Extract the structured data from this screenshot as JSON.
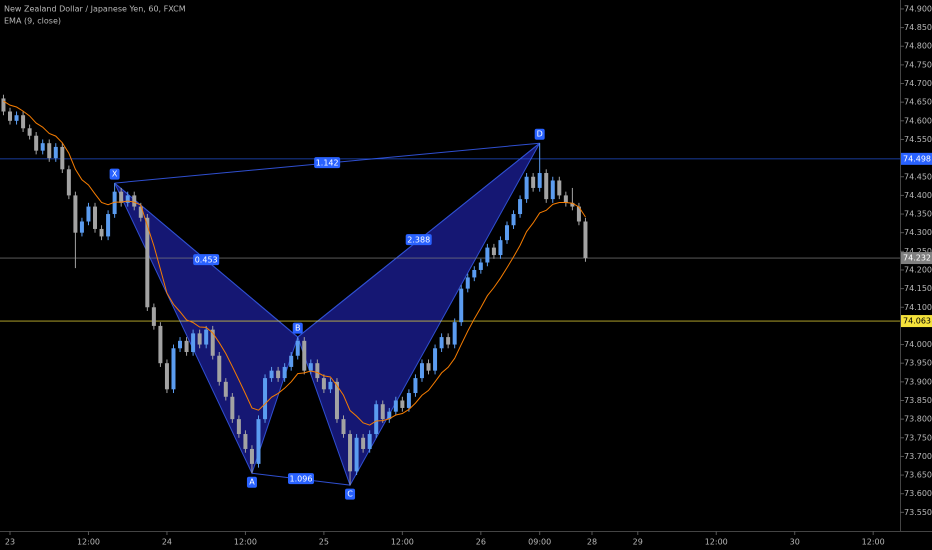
{
  "chart_data": {
    "type": "candlestick",
    "title": "New Zealand Dollar / Japanese Yen, 60, FXCM",
    "up_color": "#5b9cf0",
    "down_color": "#a3a3a3",
    "x": [
      -1,
      0,
      1,
      2,
      3,
      4,
      5,
      6,
      7,
      8,
      9,
      10,
      11,
      12,
      13,
      14,
      15,
      16,
      17,
      18,
      19,
      20,
      21,
      22,
      23,
      24,
      25,
      26,
      27,
      28,
      29,
      30,
      31,
      32,
      33,
      34,
      35,
      36,
      37,
      38,
      39,
      40,
      41,
      42,
      43,
      44,
      45,
      46,
      47,
      48,
      49,
      50,
      51,
      52,
      53,
      54,
      55,
      56,
      57,
      58,
      59,
      60,
      61,
      62,
      63,
      64,
      65,
      66,
      67,
      68,
      69,
      70,
      71,
      72,
      73,
      74,
      75,
      76,
      77,
      78,
      79,
      80,
      81,
      82,
      83,
      84,
      85,
      86,
      87,
      88
    ],
    "open": [
      74.66,
      74.625,
      74.6,
      74.615,
      74.58,
      74.56,
      74.52,
      74.54,
      74.5,
      74.53,
      74.47,
      74.4,
      74.3,
      74.33,
      74.37,
      74.31,
      74.29,
      74.35,
      74.41,
      74.38,
      74.4,
      74.37,
      74.34,
      74.1,
      74.05,
      73.95,
      73.88,
      73.99,
      74.01,
      73.98,
      74.03,
      74.0,
      74.04,
      73.97,
      73.9,
      73.86,
      73.8,
      73.76,
      73.72,
      73.68,
      73.8,
      73.91,
      73.93,
      73.91,
      73.94,
      73.97,
      74.01,
      73.93,
      73.95,
      73.91,
      73.88,
      73.9,
      73.8,
      73.76,
      73.66,
      73.75,
      73.72,
      73.76,
      73.84,
      73.8,
      73.82,
      73.85,
      73.83,
      73.87,
      73.91,
      73.95,
      73.93,
      73.99,
      74.02,
      74.0,
      74.06,
      74.15,
      74.18,
      74.2,
      74.22,
      74.26,
      74.24,
      74.28,
      74.32,
      74.35,
      74.39,
      74.45,
      74.42,
      74.46,
      74.39,
      74.44,
      74.4,
      74.38,
      74.37,
      74.33
    ],
    "high": [
      74.67,
      74.635,
      74.625,
      74.625,
      74.59,
      74.57,
      74.55,
      74.55,
      74.54,
      74.54,
      74.48,
      74.41,
      74.34,
      74.38,
      74.38,
      74.32,
      74.36,
      74.433,
      74.42,
      74.41,
      74.41,
      74.38,
      74.35,
      74.11,
      74.06,
      73.96,
      74.0,
      74.02,
      74.02,
      74.04,
      74.04,
      74.05,
      74.05,
      73.98,
      73.91,
      73.87,
      73.81,
      73.77,
      73.73,
      73.81,
      73.92,
      73.94,
      73.94,
      73.95,
      73.98,
      74.02,
      74.02,
      73.96,
      73.96,
      73.92,
      73.91,
      73.91,
      73.81,
      73.77,
      73.76,
      73.76,
      73.77,
      73.85,
      73.85,
      73.83,
      73.86,
      73.86,
      73.88,
      73.92,
      73.96,
      73.96,
      74.0,
      74.03,
      74.03,
      74.07,
      74.16,
      74.19,
      74.21,
      74.23,
      74.27,
      74.27,
      74.29,
      74.33,
      74.36,
      74.4,
      74.46,
      74.46,
      74.54,
      74.47,
      74.45,
      74.45,
      74.41,
      74.42,
      74.38,
      74.34
    ],
    "low": [
      74.615,
      74.59,
      74.59,
      74.57,
      74.55,
      74.51,
      74.51,
      74.49,
      74.49,
      74.46,
      74.39,
      74.205,
      74.29,
      74.32,
      74.3,
      74.28,
      74.28,
      74.34,
      74.37,
      74.37,
      74.36,
      74.33,
      74.09,
      74.04,
      73.94,
      73.87,
      73.87,
      73.98,
      73.97,
      73.97,
      73.99,
      73.99,
      73.96,
      73.89,
      73.85,
      73.79,
      73.75,
      73.71,
      73.655,
      73.67,
      73.79,
      73.9,
      73.9,
      73.9,
      73.93,
      73.96,
      73.92,
      73.92,
      73.9,
      73.87,
      73.87,
      73.79,
      73.75,
      73.623,
      73.65,
      73.71,
      73.71,
      73.75,
      73.79,
      73.79,
      73.81,
      73.82,
      73.82,
      73.86,
      73.9,
      73.92,
      73.92,
      73.98,
      73.99,
      73.99,
      74.05,
      74.14,
      74.17,
      74.19,
      74.21,
      74.23,
      74.23,
      74.27,
      74.31,
      74.34,
      74.38,
      74.41,
      74.41,
      74.38,
      74.38,
      74.39,
      74.37,
      74.36,
      74.32,
      74.222
    ],
    "close": [
      74.625,
      74.6,
      74.615,
      74.58,
      74.56,
      74.52,
      74.54,
      74.5,
      74.53,
      74.47,
      74.4,
      74.3,
      74.33,
      74.37,
      74.31,
      74.29,
      74.35,
      74.41,
      74.38,
      74.4,
      74.37,
      74.34,
      74.1,
      74.05,
      73.95,
      73.88,
      73.99,
      74.01,
      73.98,
      74.03,
      74.0,
      74.04,
      73.97,
      73.9,
      73.86,
      73.8,
      73.76,
      73.72,
      73.68,
      73.8,
      73.91,
      73.93,
      73.91,
      73.94,
      73.97,
      74.01,
      73.93,
      73.95,
      73.91,
      73.88,
      73.9,
      73.8,
      73.76,
      73.66,
      73.75,
      73.72,
      73.76,
      73.84,
      73.8,
      73.82,
      73.85,
      73.83,
      73.87,
      73.91,
      73.95,
      73.93,
      73.99,
      74.02,
      74.0,
      74.06,
      74.15,
      74.18,
      74.2,
      74.22,
      74.26,
      74.24,
      74.28,
      74.32,
      74.35,
      74.39,
      74.45,
      74.42,
      74.46,
      74.39,
      74.44,
      74.4,
      74.38,
      74.37,
      74.33,
      74.232
    ],
    "indicator": {
      "name": "EMA (9, close)",
      "color": "#f57c00",
      "values": [
        74.653,
        74.642,
        74.637,
        74.626,
        74.613,
        74.594,
        74.583,
        74.566,
        74.559,
        74.541,
        74.513,
        74.47,
        74.442,
        74.428,
        74.404,
        74.381,
        74.375,
        74.382,
        74.382,
        74.385,
        74.382,
        74.374,
        74.319,
        74.265,
        74.202,
        74.138,
        74.108,
        74.088,
        74.066,
        74.059,
        74.047,
        74.046,
        74.031,
        74.005,
        73.976,
        73.941,
        73.905,
        73.868,
        73.83,
        73.824,
        73.841,
        73.859,
        73.869,
        73.883,
        73.9,
        73.922,
        73.924,
        73.929,
        73.925,
        73.916,
        73.913,
        73.89,
        73.864,
        73.823,
        73.808,
        73.79,
        73.784,
        73.795,
        73.796,
        73.801,
        73.811,
        73.815,
        73.826,
        73.843,
        73.864,
        73.877,
        73.9,
        73.924,
        73.939,
        73.963,
        74.0,
        74.036,
        74.069,
        74.099,
        74.131,
        74.153,
        74.178,
        74.206,
        74.235,
        74.266,
        74.303,
        74.326,
        74.353,
        74.36,
        74.376,
        74.381,
        74.381,
        74.379,
        74.369,
        74.342
      ]
    },
    "pattern": {
      "color": "#2f4fd0",
      "fill": "#1c1f9a",
      "points": [
        {
          "label": "X",
          "x": 16,
          "y": 74.433
        },
        {
          "label": "A",
          "x": 37,
          "y": 73.655
        },
        {
          "label": "B",
          "x": 44,
          "y": 74.02
        },
        {
          "label": "C",
          "x": 52,
          "y": 73.623
        },
        {
          "label": "D",
          "x": 81,
          "y": 74.54
        }
      ],
      "ratios": [
        "0.453",
        "1.142",
        "2.388",
        "1.096"
      ]
    },
    "price_lines": [
      {
        "value": 74.498,
        "color": "#2962ff"
      },
      {
        "value": 74.232,
        "color": "#808080"
      },
      {
        "value": 74.063,
        "color": "#f5e23b"
      }
    ],
    "xlim": [
      -1.53,
      136.1
    ],
    "ylim": [
      73.5,
      74.924
    ],
    "xticks": [
      {
        "value": 0,
        "label": "23"
      },
      {
        "value": 12,
        "label": "12:00"
      },
      {
        "value": 24,
        "label": "24"
      },
      {
        "value": 36,
        "label": "12:00"
      },
      {
        "value": 48,
        "label": "25"
      },
      {
        "value": 60,
        "label": "12:00"
      },
      {
        "value": 72,
        "label": "26"
      },
      {
        "value": 81,
        "label": "09:00"
      },
      {
        "value": 89,
        "label": "28"
      },
      {
        "value": 96,
        "label": "29"
      },
      {
        "value": 108,
        "label": "12:00"
      },
      {
        "value": 120,
        "label": "30"
      },
      {
        "value": 132,
        "label": "12:00"
      }
    ],
    "yticks": [
      {
        "value": 73.55,
        "label": "73.550"
      },
      {
        "value": 73.6,
        "label": "73.600"
      },
      {
        "value": 73.65,
        "label": "73.650"
      },
      {
        "value": 73.7,
        "label": "73.700"
      },
      {
        "value": 73.75,
        "label": "73.750"
      },
      {
        "value": 73.8,
        "label": "73.800"
      },
      {
        "value": 73.85,
        "label": "73.850"
      },
      {
        "value": 73.9,
        "label": "73.900"
      },
      {
        "value": 73.95,
        "label": "73.950"
      },
      {
        "value": 74.0,
        "label": "74.000"
      },
      {
        "value": 74.1,
        "label": "74.100"
      },
      {
        "value": 74.15,
        "label": "74.150"
      },
      {
        "value": 74.2,
        "label": "74.200"
      },
      {
        "value": 74.25,
        "label": "74.250"
      },
      {
        "value": 74.3,
        "label": "74.300"
      },
      {
        "value": 74.35,
        "label": "74.350"
      },
      {
        "value": 74.4,
        "label": "74.400"
      },
      {
        "value": 74.45,
        "label": "74.450"
      },
      {
        "value": 74.55,
        "label": "74.550"
      },
      {
        "value": 74.6,
        "label": "74.600"
      },
      {
        "value": 74.65,
        "label": "74.650"
      },
      {
        "value": 74.7,
        "label": "74.700"
      },
      {
        "value": 74.75,
        "label": "74.750"
      },
      {
        "value": 74.8,
        "label": "74.800"
      },
      {
        "value": 74.85,
        "label": "74.850"
      },
      {
        "value": 74.9,
        "label": "74.900"
      }
    ]
  }
}
